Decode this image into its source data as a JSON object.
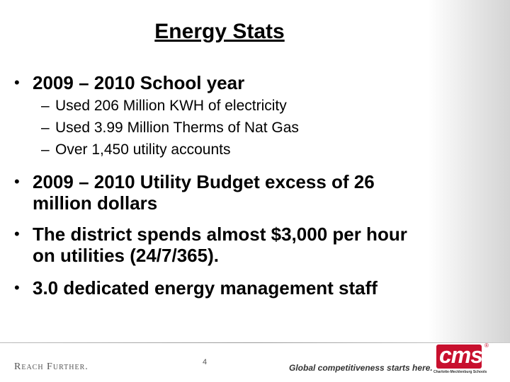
{
  "header": {
    "title": "Energy Stats"
  },
  "bullets": [
    {
      "text": "2009 – 2010 School year",
      "sub": [
        "Used 206 Million KWH of electricity",
        "Used 3.99 Million Therms of Nat Gas",
        "Over 1,450 utility accounts"
      ]
    },
    {
      "text": "2009 – 2010 Utility Budget excess of 26 million dollars"
    },
    {
      "text": "The district spends almost $3,000 per hour on utilities (24/7/365)."
    },
    {
      "text": "3.0 dedicated energy management staff"
    }
  ],
  "footer": {
    "motto": "Reach Further.",
    "page": "4",
    "tagline": "Global competitiveness starts here.",
    "logo": "cms",
    "registered": "®",
    "logo_subtitle": "Charlotte-Mecklenburg Schools"
  }
}
